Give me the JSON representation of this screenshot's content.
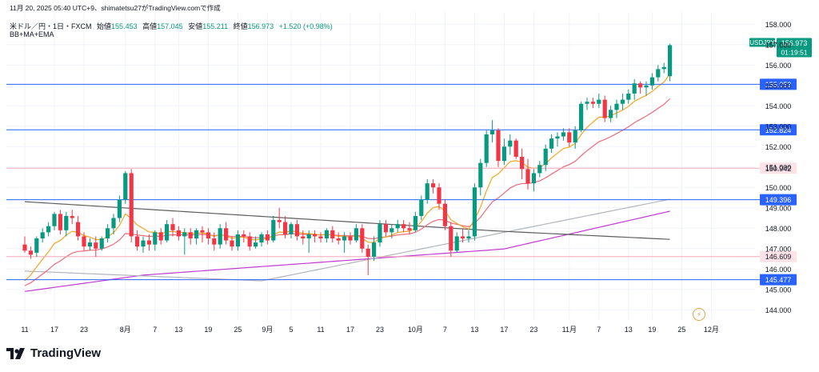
{
  "caption": "11月 20, 2025 05:40 UTC+9、shimatetsu27がTradingView.comで作成",
  "header": {
    "symbol": "米ドル／円・1日・FXCM",
    "open_label": "始値",
    "open": "155.453",
    "high_label": "高値",
    "high": "157.045",
    "low_label": "安値",
    "low": "155.211",
    "close_label": "終値",
    "close": "156.973",
    "change": "+1.520 (+0.98%)",
    "indicators": "BB+MA+EMA"
  },
  "brand": "TradingView",
  "colors": {
    "up": "#089981",
    "down": "#f23645",
    "hline_blue": "#2962ff",
    "hline_pink": "#f7a8b8",
    "ema_fast": "#f5a623",
    "ema_slow": "#f06a7a",
    "ma_purple": "#c03ad0",
    "bb_mid": "#5d5d5d",
    "bb_gray": "#b2b5be"
  },
  "chart_data": {
    "type": "candlestick",
    "symbol": "USDJPY",
    "ylim": [
      143.5,
      158.6
    ],
    "y_ticks": [
      144,
      145,
      146,
      147,
      148,
      149,
      150,
      151,
      152,
      153,
      154,
      155,
      156,
      157,
      158
    ],
    "y_tick_labels": [
      "144.000",
      "145.000",
      "146.000",
      "147.000",
      "148.000",
      "149.000",
      "150.000",
      "151.000",
      "152.000",
      "153.000",
      "154.000",
      "155.000",
      "156.000",
      "157.000",
      "158.000"
    ],
    "x_tick_labels": [
      {
        "label": "11",
        "idx": 0
      },
      {
        "label": "17",
        "idx": 5
      },
      {
        "label": "23",
        "idx": 10
      },
      {
        "label": "8月",
        "idx": 17
      },
      {
        "label": "7",
        "idx": 22
      },
      {
        "label": "13",
        "idx": 26
      },
      {
        "label": "19",
        "idx": 31
      },
      {
        "label": "25",
        "idx": 36
      },
      {
        "label": "9月",
        "idx": 41
      },
      {
        "label": "5",
        "idx": 45
      },
      {
        "label": "11",
        "idx": 50
      },
      {
        "label": "17",
        "idx": 55
      },
      {
        "label": "23",
        "idx": 60
      },
      {
        "label": "10月",
        "idx": 66
      },
      {
        "label": "7",
        "idx": 71
      },
      {
        "label": "13",
        "idx": 76
      },
      {
        "label": "17",
        "idx": 81
      },
      {
        "label": "23",
        "idx": 86
      },
      {
        "label": "11月",
        "idx": 92
      },
      {
        "label": "7",
        "idx": 97
      },
      {
        "label": "13",
        "idx": 102
      },
      {
        "label": "19",
        "idx": 106
      },
      {
        "label": "25",
        "idx": 111
      },
      {
        "label": "12月",
        "idx": 116
      }
    ],
    "price_lines": [
      {
        "value": 155.053,
        "label": "155.053",
        "style": "blue"
      },
      {
        "value": 152.824,
        "label": "152.824",
        "style": "blue"
      },
      {
        "value": 150.942,
        "label": "150.942",
        "style": "pink"
      },
      {
        "value": 149.396,
        "label": "149.396",
        "style": "blue"
      },
      {
        "value": 146.609,
        "label": "146.609",
        "style": "pink"
      },
      {
        "value": 145.477,
        "label": "145.477",
        "style": "blue"
      }
    ],
    "last_price": {
      "label": "USDJPY",
      "value": "156.973",
      "countdown": "01:19:51"
    },
    "candles": [
      [
        147.2,
        147.6,
        146.8,
        146.9
      ],
      [
        146.9,
        147.1,
        146.5,
        146.7
      ],
      [
        146.8,
        147.6,
        146.6,
        147.5
      ],
      [
        147.5,
        148.0,
        147.3,
        147.8
      ],
      [
        147.8,
        148.3,
        147.6,
        148.1
      ],
      [
        148.1,
        148.8,
        147.9,
        148.7
      ],
      [
        148.7,
        148.9,
        147.7,
        147.9
      ],
      [
        147.9,
        148.8,
        147.6,
        148.6
      ],
      [
        148.6,
        148.9,
        148.2,
        148.5
      ],
      [
        148.3,
        148.6,
        147.4,
        147.6
      ],
      [
        147.6,
        147.8,
        146.9,
        147.1
      ],
      [
        147.1,
        147.5,
        146.9,
        147.3
      ],
      [
        147.3,
        147.6,
        146.6,
        147.0
      ],
      [
        147.0,
        147.6,
        146.9,
        147.5
      ],
      [
        147.5,
        148.2,
        147.3,
        148.0
      ],
      [
        148.0,
        148.7,
        147.7,
        148.5
      ],
      [
        148.5,
        149.6,
        148.3,
        149.4
      ],
      [
        149.4,
        150.8,
        149.2,
        150.7
      ],
      [
        150.7,
        150.9,
        147.3,
        147.6
      ],
      [
        147.6,
        147.9,
        146.9,
        147.1
      ],
      [
        147.1,
        147.6,
        146.8,
        147.4
      ],
      [
        147.4,
        147.7,
        146.9,
        147.2
      ],
      [
        147.2,
        147.9,
        146.9,
        147.8
      ],
      [
        147.8,
        148.0,
        147.2,
        147.4
      ],
      [
        147.4,
        148.4,
        147.3,
        148.2
      ],
      [
        148.2,
        148.5,
        147.6,
        147.9
      ],
      [
        147.9,
        148.1,
        147.4,
        147.6
      ],
      [
        147.6,
        148.0,
        146.7,
        147.8
      ],
      [
        147.8,
        148.0,
        147.2,
        147.5
      ],
      [
        147.5,
        148.0,
        147.2,
        147.9
      ],
      [
        147.9,
        148.1,
        147.3,
        147.8
      ],
      [
        147.8,
        148.0,
        147.2,
        147.5
      ],
      [
        147.5,
        147.8,
        146.9,
        147.2
      ],
      [
        147.2,
        148.2,
        147.0,
        148.0
      ],
      [
        148.0,
        148.3,
        147.2,
        147.4
      ],
      [
        147.4,
        147.6,
        146.9,
        147.1
      ],
      [
        147.1,
        147.9,
        146.9,
        147.7
      ],
      [
        147.7,
        147.9,
        147.3,
        147.6
      ],
      [
        147.6,
        147.8,
        146.9,
        147.1
      ],
      [
        147.1,
        147.6,
        147.0,
        147.3
      ],
      [
        147.3,
        147.8,
        147.1,
        147.7
      ],
      [
        147.7,
        147.9,
        147.2,
        147.4
      ],
      [
        147.4,
        148.6,
        147.3,
        148.4
      ],
      [
        148.4,
        149.0,
        148.0,
        148.3
      ],
      [
        148.3,
        148.6,
        147.5,
        147.7
      ],
      [
        147.7,
        148.3,
        147.5,
        148.2
      ],
      [
        148.2,
        148.4,
        147.4,
        147.6
      ],
      [
        147.6,
        147.9,
        147.2,
        147.5
      ],
      [
        147.5,
        147.9,
        146.8,
        147.7
      ],
      [
        147.7,
        147.9,
        147.3,
        147.6
      ],
      [
        147.6,
        147.8,
        147.3,
        147.5
      ],
      [
        147.5,
        148.0,
        147.3,
        147.9
      ],
      [
        147.9,
        148.1,
        147.3,
        147.5
      ],
      [
        147.5,
        147.8,
        147.2,
        147.4
      ],
      [
        147.4,
        147.8,
        146.8,
        147.6
      ],
      [
        147.6,
        147.8,
        147.2,
        147.4
      ],
      [
        147.4,
        148.2,
        147.3,
        148.0
      ],
      [
        148.0,
        148.2,
        146.8,
        147.0
      ],
      [
        147.0,
        147.2,
        145.7,
        146.6
      ],
      [
        146.6,
        147.6,
        146.4,
        147.3
      ],
      [
        147.3,
        148.4,
        147.1,
        148.2
      ],
      [
        148.2,
        148.4,
        147.6,
        147.8
      ],
      [
        147.8,
        148.2,
        147.5,
        148.0
      ],
      [
        148.0,
        148.4,
        147.8,
        148.2
      ],
      [
        148.2,
        148.4,
        147.8,
        148.0
      ],
      [
        148.0,
        148.3,
        147.7,
        147.9
      ],
      [
        147.9,
        148.8,
        147.8,
        148.6
      ],
      [
        148.6,
        149.6,
        148.4,
        149.4
      ],
      [
        149.4,
        150.4,
        149.2,
        150.2
      ],
      [
        150.2,
        150.4,
        149.7,
        150.0
      ],
      [
        150.0,
        150.2,
        148.9,
        149.2
      ],
      [
        149.2,
        149.4,
        147.9,
        148.1
      ],
      [
        148.1,
        148.3,
        146.6,
        146.9
      ],
      [
        146.9,
        147.8,
        146.8,
        147.6
      ],
      [
        147.6,
        148.0,
        147.3,
        147.5
      ],
      [
        147.5,
        147.9,
        147.3,
        147.6
      ],
      [
        147.6,
        150.2,
        147.4,
        150.0
      ],
      [
        150.0,
        151.4,
        149.6,
        151.2
      ],
      [
        151.2,
        152.8,
        151.0,
        152.6
      ],
      [
        152.6,
        153.3,
        152.2,
        152.8
      ],
      [
        152.8,
        152.9,
        151.0,
        151.3
      ],
      [
        151.3,
        152.4,
        151.1,
        152.0
      ],
      [
        152.0,
        152.6,
        151.6,
        152.3
      ],
      [
        152.3,
        152.4,
        151.4,
        151.5
      ],
      [
        151.5,
        151.9,
        150.4,
        150.9
      ],
      [
        150.9,
        151.4,
        149.9,
        150.2
      ],
      [
        150.2,
        150.9,
        149.8,
        150.7
      ],
      [
        150.7,
        151.3,
        150.5,
        151.1
      ],
      [
        151.1,
        152.1,
        150.8,
        151.9
      ],
      [
        151.9,
        152.6,
        151.7,
        152.4
      ],
      [
        152.4,
        152.7,
        152.0,
        152.5
      ],
      [
        152.5,
        152.9,
        152.3,
        152.7
      ],
      [
        152.7,
        152.9,
        152.0,
        152.2
      ],
      [
        152.2,
        153.0,
        151.9,
        152.8
      ],
      [
        152.8,
        154.2,
        152.7,
        154.1
      ],
      [
        154.1,
        154.4,
        153.8,
        154.2
      ],
      [
        154.2,
        154.4,
        153.9,
        154.1
      ],
      [
        154.1,
        154.6,
        153.9,
        154.3
      ],
      [
        154.3,
        154.5,
        153.2,
        153.4
      ],
      [
        153.4,
        154.0,
        153.2,
        153.8
      ],
      [
        153.8,
        154.3,
        153.4,
        154.1
      ],
      [
        154.1,
        154.6,
        153.8,
        154.3
      ],
      [
        154.3,
        154.8,
        154.1,
        154.6
      ],
      [
        154.6,
        155.3,
        154.3,
        155.1
      ],
      [
        155.1,
        155.2,
        154.6,
        154.9
      ],
      [
        154.9,
        155.2,
        154.5,
        155.0
      ],
      [
        155.0,
        155.6,
        154.8,
        155.4
      ],
      [
        155.4,
        156.0,
        155.2,
        155.8
      ],
      [
        155.8,
        156.1,
        155.6,
        155.9
      ],
      [
        155.453,
        157.045,
        155.211,
        156.973
      ]
    ]
  }
}
